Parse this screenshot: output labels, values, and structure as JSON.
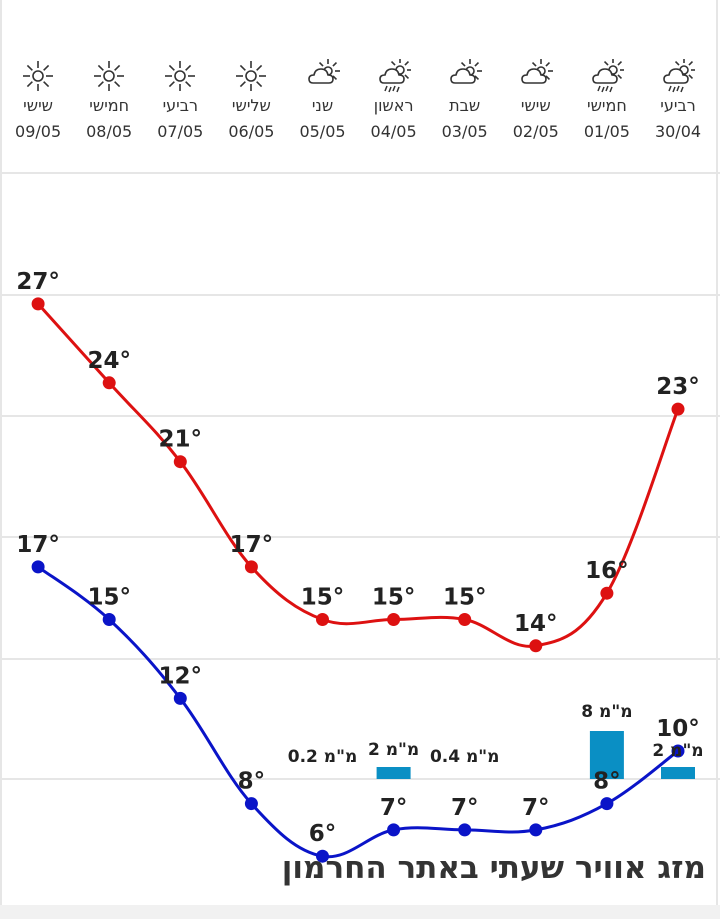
{
  "days": [
    {
      "name": "רביעי",
      "date": "30/04",
      "icon": "cloud-rain-sun-icon"
    },
    {
      "name": "חמישי",
      "date": "01/05",
      "icon": "cloud-rain-sun-icon"
    },
    {
      "name": "שישי",
      "date": "02/05",
      "icon": "partly-cloudy-icon"
    },
    {
      "name": "שבת",
      "date": "03/05",
      "icon": "partly-cloudy-icon"
    },
    {
      "name": "ראשון",
      "date": "04/05",
      "icon": "cloud-rain-sun-icon"
    },
    {
      "name": "שני",
      "date": "05/05",
      "icon": "partly-cloudy-icon"
    },
    {
      "name": "שלישי",
      "date": "06/05",
      "icon": "sun-icon"
    },
    {
      "name": "רביעי",
      "date": "07/05",
      "icon": "sun-icon"
    },
    {
      "name": "חמישי",
      "date": "08/05",
      "icon": "sun-icon"
    },
    {
      "name": "שישי",
      "date": "09/05",
      "icon": "sun-icon"
    }
  ],
  "chart_data": {
    "type": "line",
    "categories": [
      "30/04",
      "01/05",
      "02/05",
      "03/05",
      "04/05",
      "05/05",
      "06/05",
      "07/05",
      "08/05",
      "09/05"
    ],
    "series": [
      {
        "values": [
          23,
          16,
          14,
          15,
          15,
          15,
          17,
          21,
          24,
          27
        ],
        "color": "#dd1111",
        "labels": [
          "23°",
          "16°",
          "14°",
          "15°",
          "15°",
          "15°",
          "17°",
          "21°",
          "24°",
          "27°"
        ]
      },
      {
        "values": [
          10,
          8,
          7,
          7,
          7,
          6,
          8,
          12,
          15,
          17
        ],
        "color": "#0a14c8",
        "labels": [
          "10°",
          "8°",
          "7°",
          "7°",
          "7°",
          "6°",
          "8°",
          "12°",
          "15°",
          "17°"
        ]
      }
    ],
    "precipitation": {
      "values": [
        2,
        8,
        null,
        0.4,
        2,
        0.2,
        null,
        null,
        null,
        null
      ],
      "labels": [
        "2 מ\"מ",
        "8 מ\"מ",
        "",
        "0.4 מ\"מ",
        "2 מ\"מ",
        "0.2 מ\"מ",
        "",
        "",
        "",
        ""
      ],
      "color": "#0a8fc4"
    },
    "ylim": [
      3,
      30
    ],
    "grid": true
  },
  "footer": {
    "title": "מזג אוויר שעתי באתר החרמון"
  }
}
